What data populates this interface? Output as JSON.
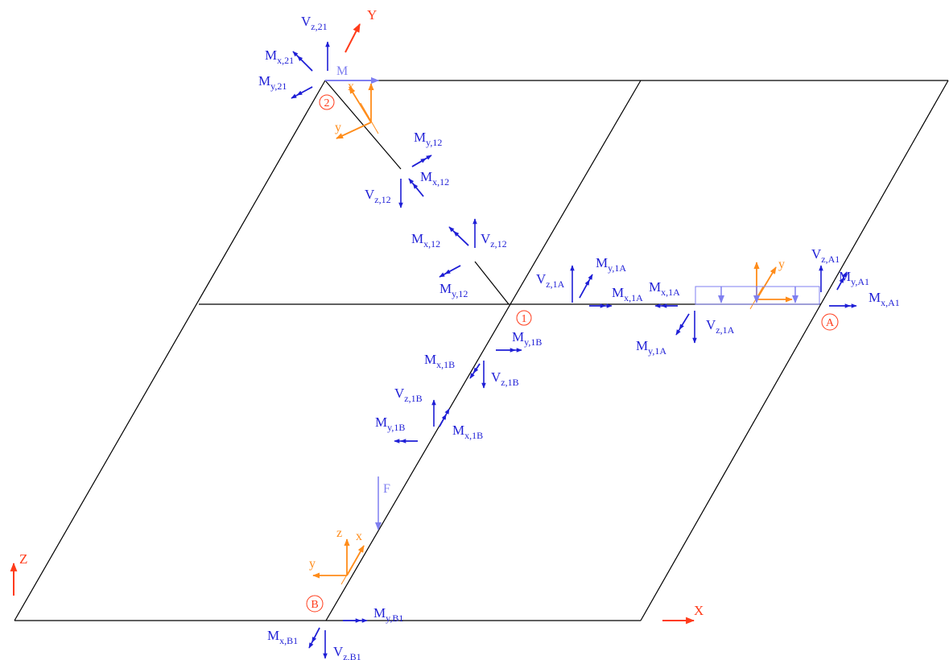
{
  "colors": {
    "frame": "#000000",
    "force": "#1f1fd6",
    "global_axis": "#ff3b1a",
    "local_axis": "#ff8c1a",
    "load": "#7f7ff0",
    "node": "#ff3b1a"
  },
  "nodes": [
    "2",
    "1",
    "A",
    "B"
  ],
  "global_axes": {
    "x": "X",
    "y": "Y",
    "z": "Z"
  },
  "local_axes": {
    "x": "x",
    "y": "y",
    "z": "z"
  },
  "loads": {
    "moment": "M",
    "force": "F"
  },
  "force_labels": [
    {
      "main": "V",
      "sub": "z,21"
    },
    {
      "main": "M",
      "sub": "x,21"
    },
    {
      "main": "M",
      "sub": "y,21"
    },
    {
      "main": "M",
      "sub": "y,12"
    },
    {
      "main": "M",
      "sub": "x,12"
    },
    {
      "main": "V",
      "sub": "z,12"
    },
    {
      "main": "M",
      "sub": "x,12"
    },
    {
      "main": "V",
      "sub": "z,12"
    },
    {
      "main": "M",
      "sub": "y,12"
    },
    {
      "main": "V",
      "sub": "z,1A"
    },
    {
      "main": "M",
      "sub": "y,1A"
    },
    {
      "main": "M",
      "sub": "x,1A"
    },
    {
      "main": "M",
      "sub": "x,1A"
    },
    {
      "main": "V",
      "sub": "z,1A"
    },
    {
      "main": "M",
      "sub": "y,1A"
    },
    {
      "main": "V",
      "sub": "z,A1"
    },
    {
      "main": "M",
      "sub": "y,A1"
    },
    {
      "main": "M",
      "sub": "x,A1"
    },
    {
      "main": "M",
      "sub": "y,1B"
    },
    {
      "main": "M",
      "sub": "x,1B"
    },
    {
      "main": "V",
      "sub": "z,1B"
    },
    {
      "main": "V",
      "sub": "z,1B"
    },
    {
      "main": "M",
      "sub": "y,1B"
    },
    {
      "main": "M",
      "sub": "x,1B"
    },
    {
      "main": "M",
      "sub": "y,B1"
    },
    {
      "main": "M",
      "sub": "x,B1"
    },
    {
      "main": "V",
      "sub": "z,B1"
    }
  ]
}
